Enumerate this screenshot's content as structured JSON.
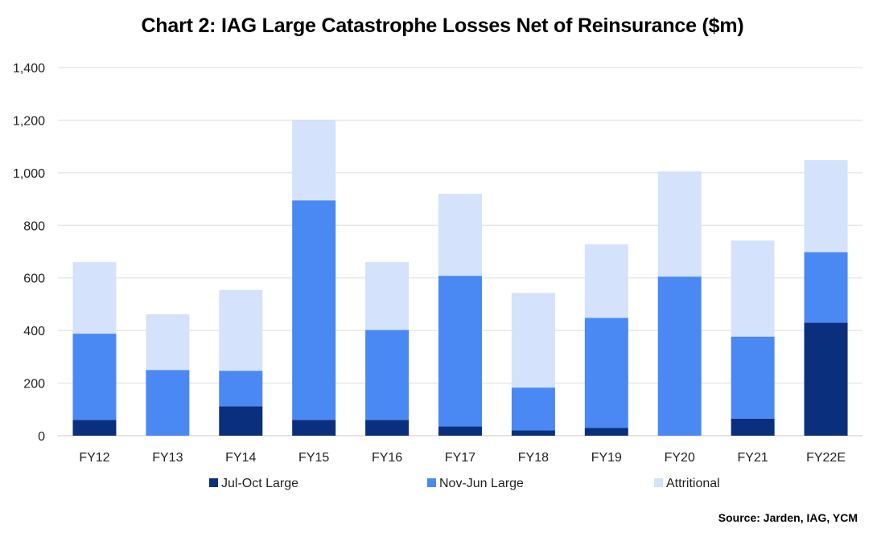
{
  "chart_data": {
    "type": "bar",
    "stacked": true,
    "title": "Chart 2: IAG Large Catastrophe Losses Net of Reinsurance ($m)",
    "categories": [
      "FY12",
      "FY13",
      "FY14",
      "FY15",
      "FY16",
      "FY17",
      "FY18",
      "FY19",
      "FY20",
      "FY21",
      "FY22E"
    ],
    "series": [
      {
        "name": "Jul-Oct Large",
        "color": "#0a2f7c",
        "values": [
          60,
          0,
          112,
          60,
          60,
          35,
          20,
          30,
          0,
          65,
          430
        ]
      },
      {
        "name": "Nov-Jun Large",
        "color": "#4a89f3",
        "values": [
          328,
          250,
          135,
          835,
          342,
          573,
          163,
          418,
          605,
          312,
          268
        ]
      },
      {
        "name": "Attritional",
        "color": "#d4e3fb",
        "values": [
          272,
          212,
          307,
          305,
          258,
          312,
          360,
          280,
          400,
          365,
          350
        ]
      }
    ],
    "ylim": [
      0,
      1400
    ],
    "yticks": [
      0,
      200,
      400,
      600,
      800,
      1000,
      1200,
      1400
    ],
    "ytick_labels": [
      "0",
      "200",
      "400",
      "600",
      "800",
      "1,000",
      "1,200",
      "1,400"
    ],
    "grid": true,
    "legend": "bottom",
    "xlabel": "",
    "ylabel": ""
  },
  "source": "Source: Jarden, IAG, YCM"
}
